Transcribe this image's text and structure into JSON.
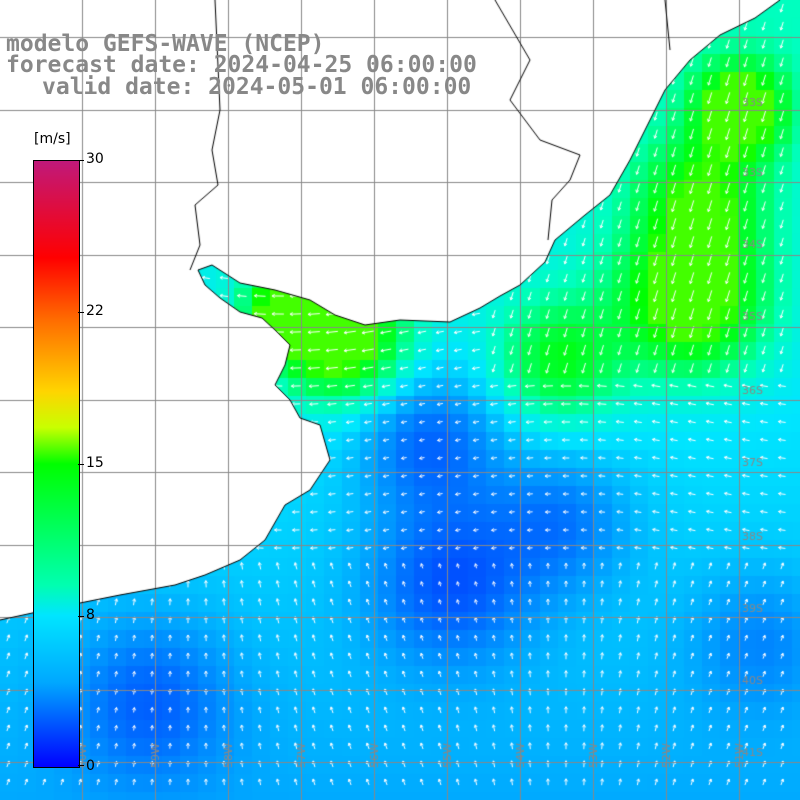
{
  "title": {
    "line1": "modelo GEFS-WAVE (NCEP)",
    "line2": "forecast date: 2024-04-25 06:00:00",
    "line3": "valid date: 2024-05-01 06:00:00"
  },
  "colorbar": {
    "unit": "[m/s]",
    "ticks": [
      {
        "value": 30,
        "label": "30"
      },
      {
        "value": 22,
        "label": "22"
      },
      {
        "value": 15,
        "label": "15"
      },
      {
        "value": 8,
        "label": "8"
      },
      {
        "value": 0,
        "label": "0"
      }
    ],
    "range": [
      0,
      30
    ]
  },
  "lat_labels": [
    "33S",
    "33S",
    "34S",
    "35S",
    "36S",
    "37S",
    "38S",
    "39S",
    "40S",
    "41S"
  ],
  "lon_labels": [
    "60W",
    "59W",
    "58W",
    "57W",
    "56W",
    "55W",
    "54W",
    "53W",
    "52W",
    "51W"
  ],
  "colors": {
    "land": "#ffffff",
    "grid": "#888888",
    "coast": "#000000",
    "arrow": "#ffffff"
  }
}
